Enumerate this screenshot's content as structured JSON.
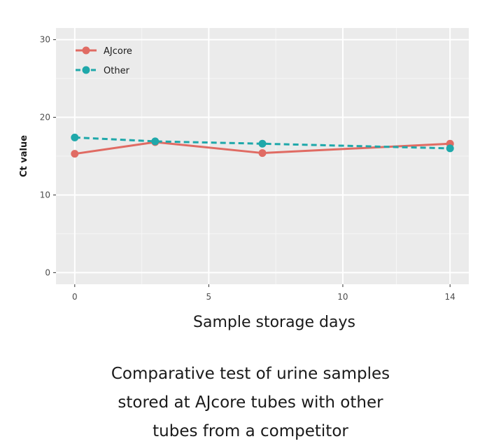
{
  "chart_data": {
    "type": "line",
    "x": [
      0,
      3,
      7,
      14
    ],
    "series": [
      {
        "name": "AJcore",
        "values": [
          15.3,
          16.8,
          15.4,
          16.6
        ],
        "color": "#e06b63",
        "dash": "solid"
      },
      {
        "name": "Other",
        "values": [
          17.4,
          16.9,
          16.6,
          16.0
        ],
        "color": "#1fa8aa",
        "dash": "dashed"
      }
    ],
    "xlabel": "Sample storage days",
    "ylabel": "Ct value",
    "xticks": [
      0,
      5,
      10,
      14
    ],
    "yticks": [
      0,
      10,
      20,
      30
    ],
    "xlim": [
      -0.7,
      14.7
    ],
    "ylim": [
      -1.5,
      31.5
    ],
    "grid": true,
    "legend": "top-left"
  },
  "caption": {
    "lines": [
      "Comparative test of urine samples",
      "stored at AJcore tubes with other",
      "tubes from a competitor"
    ]
  }
}
